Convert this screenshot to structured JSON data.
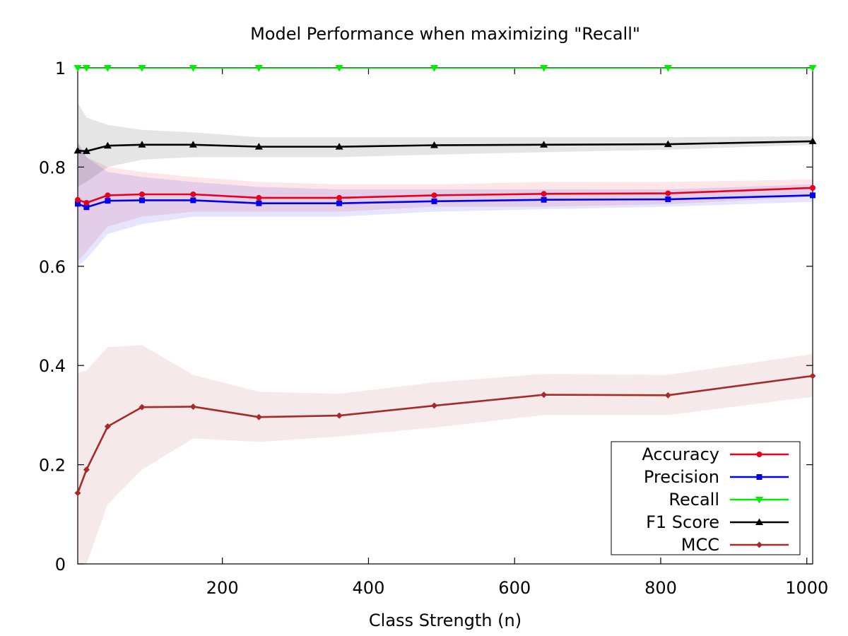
{
  "chart_data": {
    "type": "line",
    "title": "Model Performance when maximizing \"Recall\"",
    "xlabel": "Class Strength (n)",
    "ylabel": "",
    "xlim": [
      2,
      1008
    ],
    "ylim": [
      0,
      1
    ],
    "xticks": [
      200,
      400,
      600,
      800,
      1000
    ],
    "yticks": [
      0,
      0.2,
      0.4,
      0.6,
      0.8,
      1
    ],
    "xtick_labels": [
      "200",
      "400",
      "600",
      "800",
      "1000"
    ],
    "ytick_labels": [
      "0",
      "0.2",
      "0.4",
      "0.6",
      "0.8",
      "1"
    ],
    "grid": false,
    "legend_position": "bottom-right",
    "x": [
      2,
      14,
      43,
      90,
      160,
      250,
      360,
      490,
      640,
      810,
      1008
    ],
    "series": [
      {
        "name": "Accuracy",
        "color": "#e8001c",
        "marker": "circle",
        "values": [
          0.734,
          0.728,
          0.743,
          0.745,
          0.745,
          0.738,
          0.738,
          0.743,
          0.746,
          0.747,
          0.758
        ],
        "lower": [
          0.61,
          0.63,
          0.68,
          0.7,
          0.71,
          0.71,
          0.71,
          0.72,
          0.72,
          0.725,
          0.74
        ],
        "upper": [
          0.85,
          0.82,
          0.8,
          0.79,
          0.78,
          0.77,
          0.765,
          0.765,
          0.77,
          0.77,
          0.775
        ]
      },
      {
        "name": "Precision",
        "color": "#0000ee",
        "marker": "square",
        "values": [
          0.726,
          0.719,
          0.732,
          0.733,
          0.733,
          0.727,
          0.727,
          0.731,
          0.734,
          0.735,
          0.743
        ],
        "lower": [
          0.6,
          0.615,
          0.665,
          0.685,
          0.7,
          0.7,
          0.7,
          0.71,
          0.715,
          0.72,
          0.73
        ],
        "upper": [
          0.85,
          0.82,
          0.79,
          0.78,
          0.77,
          0.76,
          0.755,
          0.755,
          0.755,
          0.755,
          0.765
        ]
      },
      {
        "name": "Recall",
        "color": "#00ee00",
        "marker": "triangle-down",
        "values": [
          1,
          1,
          1,
          1,
          1,
          1,
          1,
          1,
          1,
          1,
          1
        ]
      },
      {
        "name": "F1 Score",
        "color": "#000000",
        "marker": "triangle-up",
        "values": [
          0.833,
          0.832,
          0.843,
          0.845,
          0.845,
          0.841,
          0.841,
          0.844,
          0.845,
          0.846,
          0.852
        ],
        "lower": [
          0.76,
          0.77,
          0.8,
          0.815,
          0.82,
          0.82,
          0.82,
          0.825,
          0.83,
          0.835,
          0.845
        ],
        "upper": [
          0.93,
          0.9,
          0.885,
          0.875,
          0.87,
          0.86,
          0.86,
          0.86,
          0.86,
          0.86,
          0.862
        ]
      },
      {
        "name": "MCC",
        "color": "#a52a2a",
        "marker": "diamond",
        "values": [
          0.143,
          0.19,
          0.277,
          0.316,
          0.317,
          0.296,
          0.299,
          0.319,
          0.341,
          0.34,
          0.379
        ],
        "lower": [
          -0.1,
          0.0,
          0.12,
          0.19,
          0.253,
          0.246,
          0.257,
          0.275,
          0.3,
          0.3,
          0.337
        ],
        "upper": [
          0.385,
          0.39,
          0.437,
          0.441,
          0.381,
          0.347,
          0.343,
          0.366,
          0.383,
          0.381,
          0.423
        ]
      }
    ]
  }
}
